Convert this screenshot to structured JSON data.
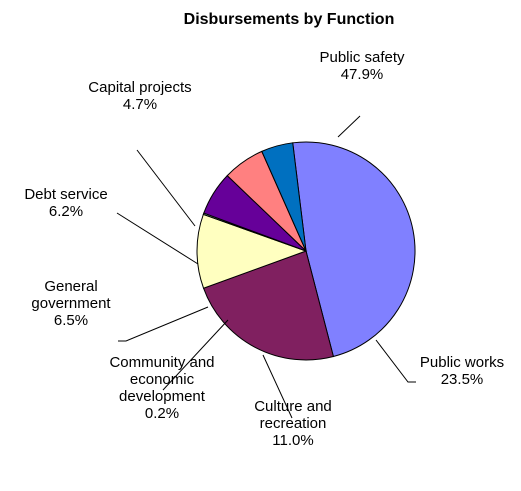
{
  "chart_data": {
    "type": "pie",
    "title": "Disbursements by Function",
    "slices": [
      {
        "label": [
          "Public safety"
        ],
        "percent_label": "47.9%",
        "value": 47.9,
        "color": "#8080ff"
      },
      {
        "label": [
          "Public works"
        ],
        "percent_label": "23.5%",
        "value": 23.5,
        "color": "#802060"
      },
      {
        "label": [
          "Culture and",
          "recreation"
        ],
        "percent_label": "11.0%",
        "value": 11.0,
        "color": "#ffffc0"
      },
      {
        "label": [
          "Community and",
          "economic",
          "development"
        ],
        "percent_label": "0.2%",
        "value": 0.2,
        "color": "#a0e0e0"
      },
      {
        "label": [
          "General",
          "government"
        ],
        "percent_label": "6.5%",
        "value": 6.5,
        "color": "#660099"
      },
      {
        "label": [
          "Debt service"
        ],
        "percent_label": "6.2%",
        "value": 6.2,
        "color": "#ff8080"
      },
      {
        "label": [
          "Capital projects"
        ],
        "percent_label": "4.7%",
        "value": 4.7,
        "color": "#0070c0"
      }
    ],
    "start_angle_deg": -7,
    "direction": "clockwise",
    "legend": "none",
    "data_labels": "outside with leader lines"
  }
}
